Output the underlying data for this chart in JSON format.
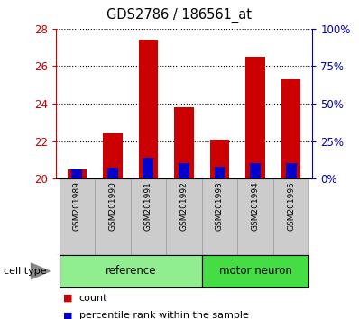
{
  "title": "GDS2786 / 186561_at",
  "samples": [
    "GSM201989",
    "GSM201990",
    "GSM201991",
    "GSM201992",
    "GSM201993",
    "GSM201994",
    "GSM201995"
  ],
  "count_values": [
    20.5,
    22.4,
    27.4,
    23.8,
    22.1,
    26.5,
    25.3
  ],
  "percentile_values": [
    20.5,
    20.6,
    21.1,
    20.85,
    20.65,
    20.85,
    20.85
  ],
  "base_value": 20.0,
  "ylim": [
    20,
    28
  ],
  "yticks_left": [
    20,
    22,
    24,
    26,
    28
  ],
  "yticks_right": [
    0,
    25,
    50,
    75,
    100
  ],
  "right_ylim": [
    0,
    100
  ],
  "groups": [
    {
      "label": "reference",
      "samples": [
        0,
        1,
        2,
        3
      ],
      "color": "#90ee90"
    },
    {
      "label": "motor neuron",
      "samples": [
        4,
        5,
        6
      ],
      "color": "#44dd44"
    }
  ],
  "bar_width": 0.55,
  "count_color": "#cc0000",
  "percentile_color": "#0000cc",
  "bg_xlabels": "#cccccc",
  "left_tick_color": "#cc0000",
  "right_tick_color": "#0000bb",
  "cell_type_label": "cell type"
}
